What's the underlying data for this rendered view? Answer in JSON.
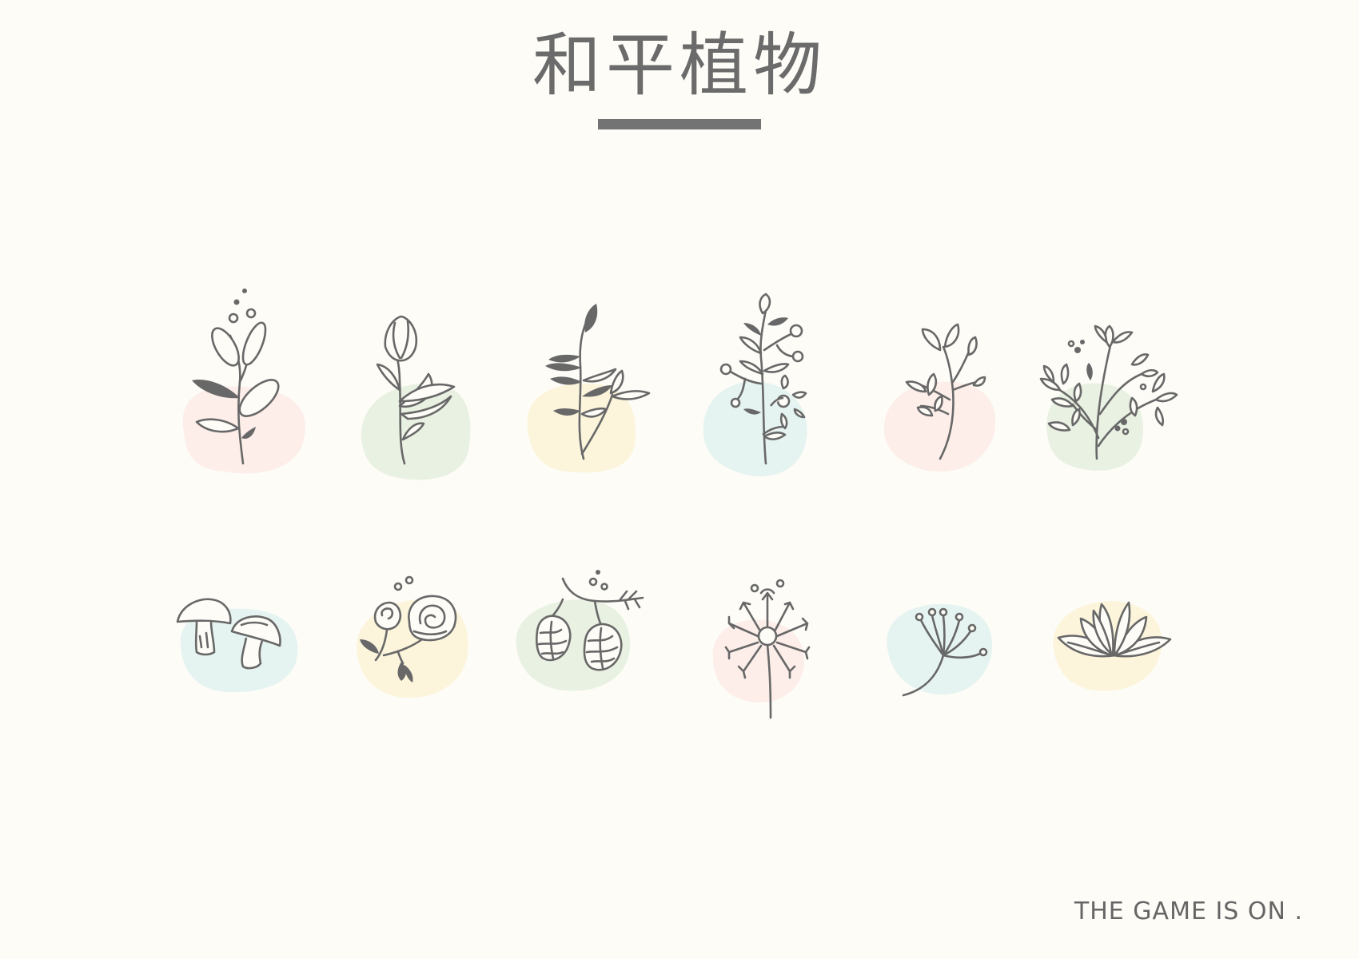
{
  "title": "和平植物",
  "footer_text": "THE GAME IS ON .",
  "colors": {
    "background": "#fdfcf7",
    "ink": "#686868",
    "blob_pink": "#fdeeea",
    "blob_green": "#e9f1e2",
    "blob_yellow": "#fcf5dc",
    "blob_blue": "#e6f4f1"
  },
  "icons": [
    {
      "name": "leafy-branch-icon",
      "blob": "pink"
    },
    {
      "name": "tulip-bud-icon",
      "blob": "green"
    },
    {
      "name": "fern-sprig-icon",
      "blob": "yellow"
    },
    {
      "name": "berry-stem-icon",
      "blob": "blue"
    },
    {
      "name": "small-sprout-icon",
      "blob": "pink"
    },
    {
      "name": "wildflower-bouquet-icon",
      "blob": "green"
    },
    {
      "name": "mushrooms-icon",
      "blob": "blue"
    },
    {
      "name": "roses-icon",
      "blob": "yellow"
    },
    {
      "name": "hop-cones-icon",
      "blob": "green"
    },
    {
      "name": "dandelion-icon",
      "blob": "pink"
    },
    {
      "name": "umbel-flower-icon",
      "blob": "blue"
    },
    {
      "name": "lotus-icon",
      "blob": "yellow"
    }
  ]
}
